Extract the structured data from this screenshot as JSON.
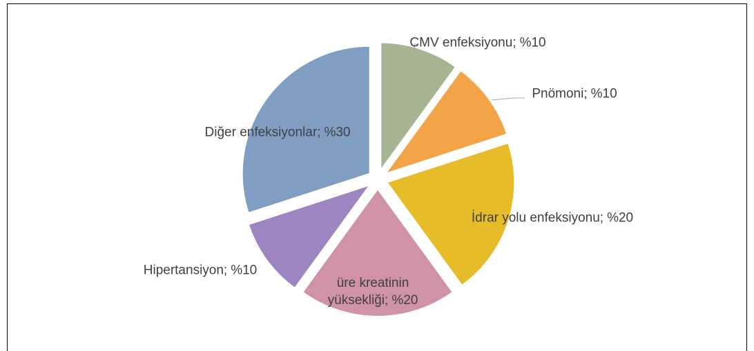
{
  "chart_data": {
    "type": "pie",
    "categories": [
      "CMV enfeksiyonu;",
      "Pnömoni;",
      "İdrar yolu enfeksiyonu;",
      "üre kreatinin yüksekliği;",
      "Hipertansiyon;",
      "Diğer enfeksiyonlar;"
    ],
    "values": [
      10,
      10,
      20,
      20,
      10,
      30
    ],
    "value_labels": [
      "%10",
      "%10",
      "%20",
      "%20",
      "%10",
      "%30"
    ],
    "colors": [
      "#a5b592",
      "#f3a447",
      "#e7bc29",
      "#d092a7",
      "#9c85c0",
      "#809ec2"
    ]
  }
}
